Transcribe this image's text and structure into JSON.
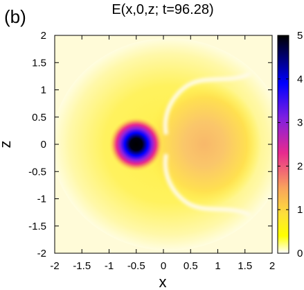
{
  "chart_data": {
    "type": "heatmap",
    "panel_label": "(b)",
    "title": "E(x,0,z;  t=96.28)",
    "xlabel": "x",
    "ylabel": "z",
    "xlim": [
      -2,
      2
    ],
    "ylim": [
      -2,
      2
    ],
    "xticks": [
      -2,
      -1.5,
      -1,
      -0.5,
      0,
      0.5,
      1,
      1.5,
      2
    ],
    "yticks": [
      -2,
      -1.5,
      -1,
      -0.5,
      0,
      0.5,
      1,
      1.5,
      2
    ],
    "colorbar": {
      "range": [
        0,
        5
      ],
      "ticks": [
        0,
        1,
        2,
        3,
        4,
        5
      ],
      "colors": [
        "#ffffff",
        "#ffff00",
        "#f9a35c",
        "#e82a8e",
        "#8020e0",
        "#0000ff",
        "#000000"
      ]
    },
    "field_features": {
      "core": {
        "x": -0.5,
        "z": 0,
        "peak": 5
      },
      "halo_peak": {
        "x": 0.75,
        "z": 0,
        "value": 1.3
      },
      "ridge_x": 0.05
    },
    "grid": false,
    "legend": "none"
  }
}
